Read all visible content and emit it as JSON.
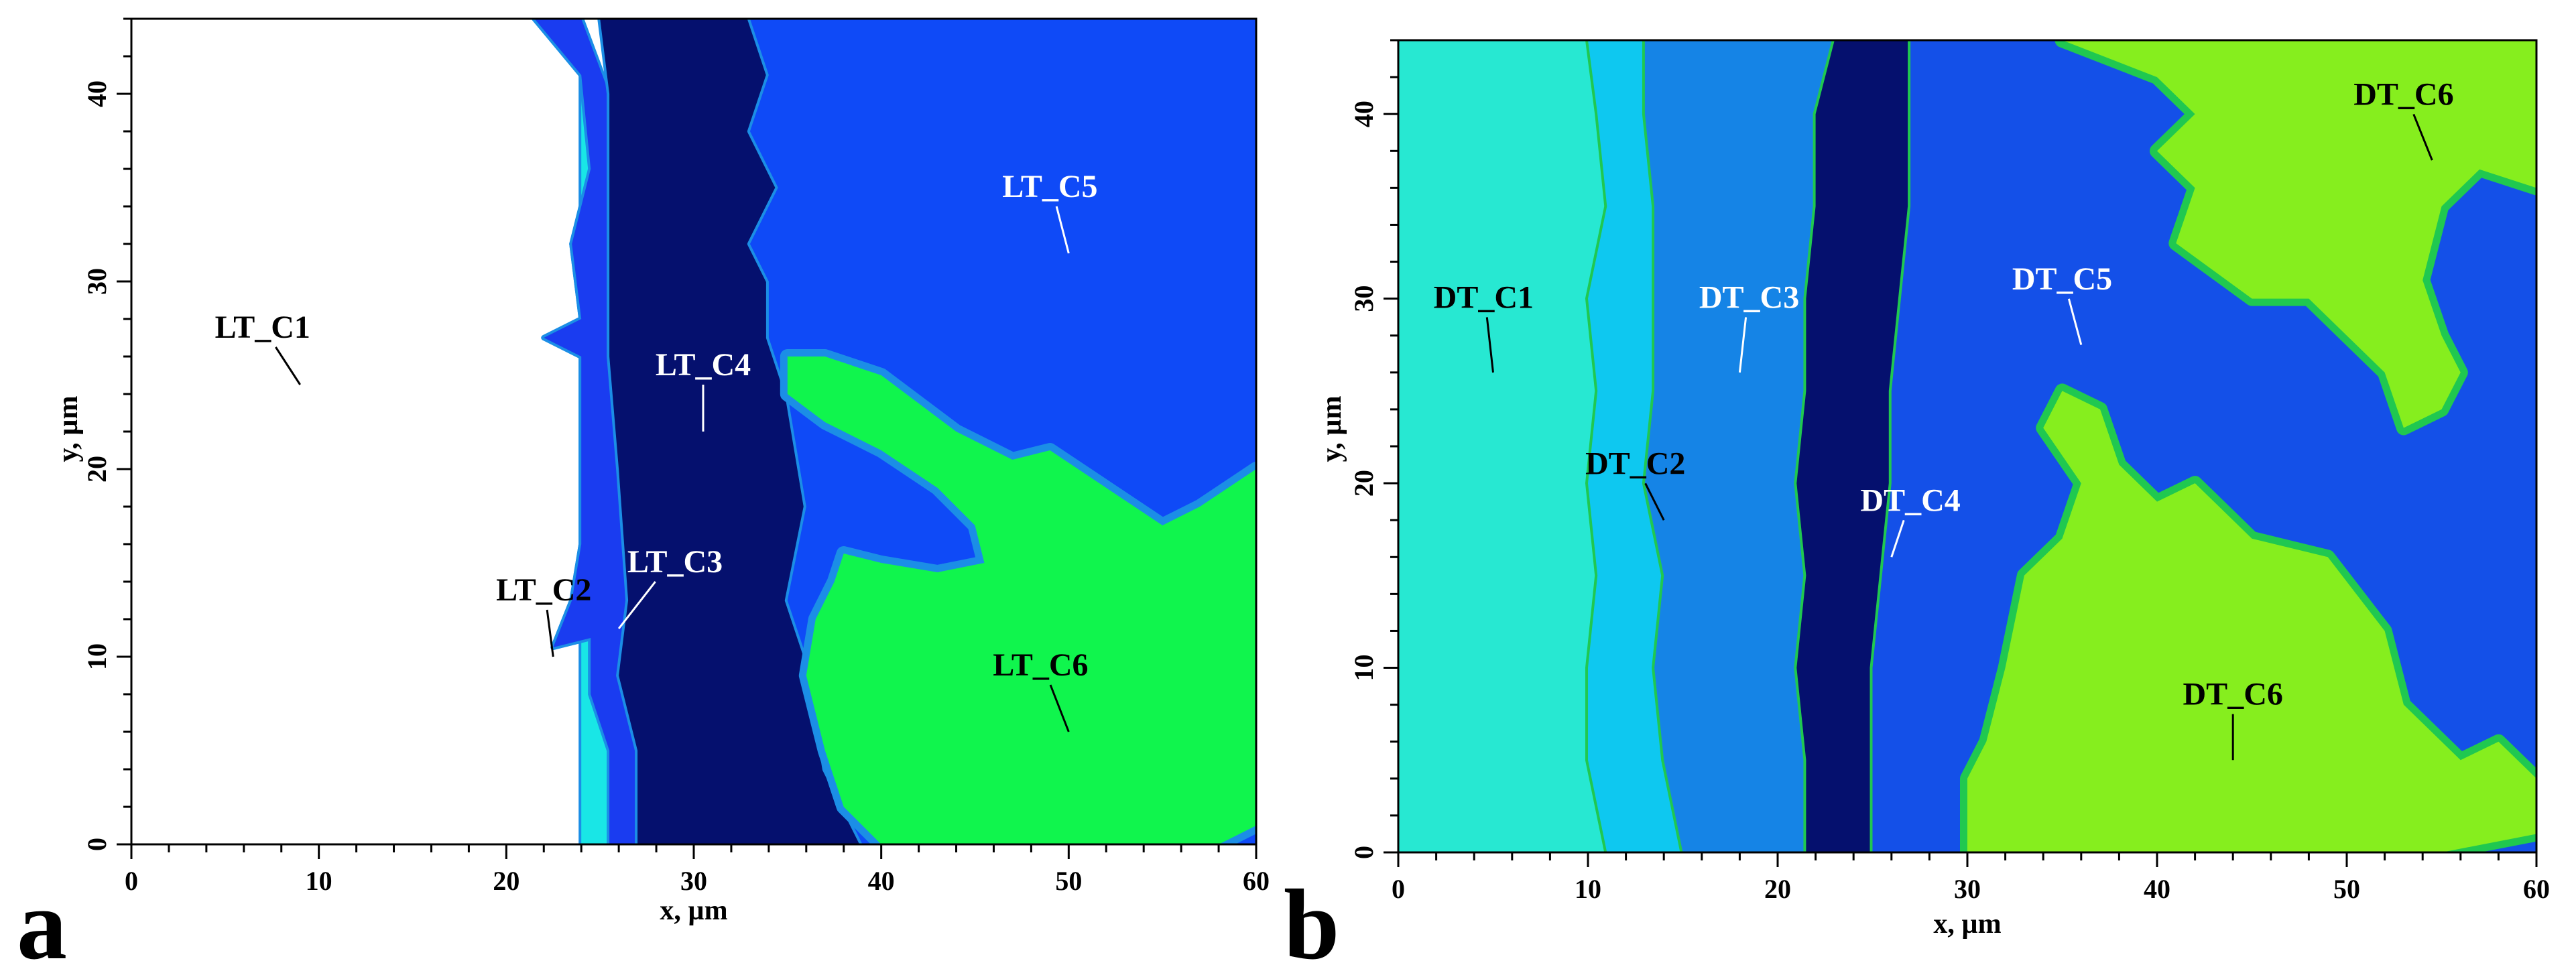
{
  "chart_data": [
    {
      "type": "heatmap",
      "panel_label": "a",
      "xlabel": "x, µm",
      "ylabel": "y, µm",
      "xlim": [
        0,
        60
      ],
      "ylim": [
        0,
        44
      ],
      "x_ticks": [
        "0",
        "10",
        "20",
        "30",
        "40",
        "50",
        "60"
      ],
      "y_ticks": [
        "0",
        "10",
        "20",
        "30",
        "40"
      ],
      "colors": {
        "C1": "#ffffff",
        "C2": "#19e6e6",
        "C3": "#1a3cf0",
        "C4": "#05106e",
        "C5": "#0f4af7",
        "C6": "#10f54d",
        "border": "#1b8ee6"
      },
      "regions": [
        {
          "label": "LT_C1",
          "x": 9,
          "y": 24.5,
          "label_x": 7,
          "label_y": 27,
          "label_color": "#000000",
          "polygon": [
            [
              0,
              0
            ],
            [
              24,
              0
            ],
            [
              24,
              44
            ],
            [
              0,
              44
            ]
          ]
        },
        {
          "label": "LT_C2",
          "x": 22.5,
          "y": 10,
          "label_x": 22,
          "label_y": 13,
          "label_color": "#000000",
          "polygon": [
            [
              24,
              0
            ],
            [
              25.5,
              0
            ],
            [
              25.5,
              5
            ],
            [
              24.5,
              8
            ],
            [
              24.5,
              11
            ],
            [
              22.5,
              10.5
            ],
            [
              23.5,
              13
            ],
            [
              24,
              16
            ],
            [
              24,
              26
            ],
            [
              22,
              27
            ],
            [
              24,
              28
            ],
            [
              23.5,
              32
            ],
            [
              24.5,
              36
            ],
            [
              24,
              41
            ],
            [
              21.5,
              44
            ],
            [
              24,
              44
            ],
            [
              24,
              0
            ]
          ]
        },
        {
          "label": "LT_C3",
          "x": 26,
          "y": 11.5,
          "label_x": 29,
          "label_y": 14.5,
          "label_color": "#ffffff",
          "polygon": [
            [
              25.5,
              0
            ],
            [
              27,
              0
            ],
            [
              27,
              5
            ],
            [
              26,
              9
            ],
            [
              26.5,
              13
            ],
            [
              26,
              20
            ],
            [
              25.5,
              26
            ],
            [
              25.5,
              36
            ],
            [
              25.5,
              40
            ],
            [
              24,
              44
            ],
            [
              21.5,
              44
            ],
            [
              24,
              41
            ],
            [
              24.5,
              36
            ],
            [
              23.5,
              32
            ],
            [
              24,
              28
            ],
            [
              22,
              27
            ],
            [
              24,
              26
            ],
            [
              24,
              16
            ],
            [
              23.5,
              13
            ],
            [
              22.5,
              10.5
            ],
            [
              24.5,
              11
            ],
            [
              24.5,
              8
            ],
            [
              25.5,
              5
            ]
          ]
        },
        {
          "label": "LT_C4",
          "x": 30.5,
          "y": 22,
          "label_x": 30.5,
          "label_y": 25,
          "label_color": "#ffffff",
          "polygon": [
            [
              27,
              0
            ],
            [
              39,
              0
            ],
            [
              37,
              4
            ],
            [
              36,
              10
            ],
            [
              35,
              13
            ],
            [
              36,
              18
            ],
            [
              35.5,
              21
            ],
            [
              35,
              24
            ],
            [
              34,
              27
            ],
            [
              34,
              30
            ],
            [
              33,
              32
            ],
            [
              34.5,
              35
            ],
            [
              33,
              38
            ],
            [
              34,
              41
            ],
            [
              33,
              44
            ],
            [
              25,
              44
            ],
            [
              25.5,
              40
            ],
            [
              25.5,
              36
            ],
            [
              25.5,
              26
            ],
            [
              26,
              20
            ],
            [
              26.5,
              13
            ],
            [
              26,
              9
            ],
            [
              27,
              5
            ]
          ]
        },
        {
          "label": "LT_C5",
          "x": 50,
          "y": 31.5,
          "label_x": 49,
          "label_y": 34.5,
          "label_color": "#ffffff",
          "polygon": [
            [
              33,
              44
            ],
            [
              60,
              44
            ],
            [
              60,
              0
            ],
            [
              39,
              0
            ],
            [
              37,
              4
            ],
            [
              36,
              10
            ],
            [
              35,
              13
            ],
            [
              36,
              18
            ],
            [
              35.5,
              21
            ],
            [
              35,
              24
            ],
            [
              34,
              27
            ],
            [
              34,
              30
            ],
            [
              33,
              32
            ],
            [
              34.5,
              35
            ],
            [
              33,
              38
            ],
            [
              34,
              41
            ]
          ]
        },
        {
          "label": "LT_C6",
          "x": 50,
          "y": 6,
          "label_x": 48.5,
          "label_y": 9,
          "label_color": "#000000",
          "polygon": [
            [
              40,
              0
            ],
            [
              58,
              0
            ],
            [
              60,
              1
            ],
            [
              60,
              20
            ],
            [
              57,
              18
            ],
            [
              55,
              17
            ],
            [
              52,
              19
            ],
            [
              49,
              21
            ],
            [
              47,
              20.5
            ],
            [
              44,
              22
            ],
            [
              42,
              23.5
            ],
            [
              40,
              25
            ],
            [
              37,
              26
            ],
            [
              35,
              26
            ],
            [
              35,
              24
            ],
            [
              37,
              22.5
            ],
            [
              40,
              21
            ],
            [
              43,
              19
            ],
            [
              45,
              17
            ],
            [
              45.5,
              15
            ],
            [
              43,
              14.5
            ],
            [
              40,
              15
            ],
            [
              38,
              15.5
            ],
            [
              37.5,
              14
            ],
            [
              36.5,
              12
            ],
            [
              36,
              9
            ],
            [
              37,
              5
            ],
            [
              38,
              2
            ]
          ]
        }
      ]
    },
    {
      "type": "heatmap",
      "panel_label": "b",
      "xlabel": "x, µm",
      "ylabel": "y, µm",
      "xlim": [
        0,
        60
      ],
      "ylim": [
        0,
        44
      ],
      "x_ticks": [
        "0",
        "10",
        "20",
        "30",
        "40",
        "50",
        "60"
      ],
      "y_ticks": [
        "0",
        "10",
        "20",
        "30",
        "40"
      ],
      "colors": {
        "C1": "#27e8d2",
        "C2": "#0ec8f0",
        "C3": "#1584e6",
        "C4": "#05106e",
        "C5": "#1450e8",
        "C6": "#86ee1e",
        "border": "#20c850"
      },
      "regions": [
        {
          "label": "DT_C1",
          "x": 5,
          "y": 26,
          "label_x": 4.5,
          "label_y": 29.5,
          "label_color": "#000000",
          "polygon": [
            [
              0,
              0
            ],
            [
              11,
              0
            ],
            [
              10,
              5
            ],
            [
              10,
              10
            ],
            [
              10.5,
              15
            ],
            [
              10,
              20
            ],
            [
              10.5,
              25
            ],
            [
              10,
              30
            ],
            [
              11,
              35
            ],
            [
              10.5,
              40
            ],
            [
              10,
              44
            ],
            [
              0,
              44
            ]
          ]
        },
        {
          "label": "DT_C2",
          "x": 14,
          "y": 18,
          "label_x": 12.5,
          "label_y": 20.5,
          "label_color": "#000000",
          "polygon": [
            [
              11,
              0
            ],
            [
              15,
              0
            ],
            [
              14,
              5
            ],
            [
              13.5,
              10
            ],
            [
              14,
              15
            ],
            [
              13,
              20
            ],
            [
              13.5,
              25
            ],
            [
              13.5,
              30
            ],
            [
              13.5,
              35
            ],
            [
              13,
              40
            ],
            [
              13,
              44
            ],
            [
              10,
              44
            ],
            [
              10.5,
              40
            ],
            [
              11,
              35
            ],
            [
              10,
              30
            ],
            [
              10.5,
              25
            ],
            [
              10,
              20
            ],
            [
              10.5,
              15
            ],
            [
              10,
              10
            ],
            [
              10,
              5
            ]
          ]
        },
        {
          "label": "DT_C3",
          "x": 18,
          "y": 26,
          "label_x": 18.5,
          "label_y": 29.5,
          "label_color": "#ffffff",
          "polygon": [
            [
              15,
              0
            ],
            [
              21.5,
              0
            ],
            [
              21.5,
              5
            ],
            [
              21,
              10
            ],
            [
              21.5,
              15
            ],
            [
              21,
              20
            ],
            [
              21.5,
              25
            ],
            [
              21.5,
              30
            ],
            [
              22,
              35
            ],
            [
              22,
              40
            ],
            [
              23,
              44
            ],
            [
              13,
              44
            ],
            [
              13,
              40
            ],
            [
              13.5,
              35
            ],
            [
              13.5,
              30
            ],
            [
              13.5,
              25
            ],
            [
              13,
              20
            ],
            [
              14,
              15
            ],
            [
              13.5,
              10
            ],
            [
              14,
              5
            ]
          ]
        },
        {
          "label": "DT_C4",
          "x": 26,
          "y": 16,
          "label_x": 27,
          "label_y": 18.5,
          "label_color": "#ffffff",
          "polygon": [
            [
              21.5,
              0
            ],
            [
              25,
              0
            ],
            [
              25,
              5
            ],
            [
              25,
              10
            ],
            [
              25.5,
              15
            ],
            [
              26,
              20
            ],
            [
              26,
              25
            ],
            [
              26.5,
              30
            ],
            [
              27,
              35
            ],
            [
              27,
              40
            ],
            [
              27,
              44
            ],
            [
              23,
              44
            ],
            [
              22,
              40
            ],
            [
              22,
              35
            ],
            [
              21.5,
              30
            ],
            [
              21.5,
              25
            ],
            [
              21,
              20
            ],
            [
              21.5,
              15
            ],
            [
              21,
              10
            ],
            [
              21.5,
              5
            ]
          ]
        },
        {
          "label": "DT_C5",
          "x": 36,
          "y": 27.5,
          "label_x": 35,
          "label_y": 30.5,
          "label_color": "#ffffff",
          "polygon": [
            [
              25,
              0
            ],
            [
              60,
              0
            ],
            [
              60,
              44
            ],
            [
              27,
              44
            ],
            [
              27,
              40
            ],
            [
              27,
              35
            ],
            [
              26.5,
              30
            ],
            [
              26,
              25
            ],
            [
              26,
              20
            ],
            [
              25.5,
              15
            ],
            [
              25,
              10
            ],
            [
              25,
              5
            ]
          ]
        },
        {
          "label": "DT_C6",
          "x": 44,
          "y": 5,
          "label_x": 44,
          "label_y": 8,
          "label_color": "#000000",
          "polygon": [
            [
              30,
              0
            ],
            [
              55,
              0
            ],
            [
              60,
              1
            ],
            [
              60,
              4
            ],
            [
              58,
              6
            ],
            [
              56,
              5
            ],
            [
              53,
              8
            ],
            [
              52,
              12
            ],
            [
              49,
              16
            ],
            [
              45,
              17
            ],
            [
              42,
              20
            ],
            [
              40,
              19
            ],
            [
              38,
              21
            ],
            [
              37,
              24
            ],
            [
              35,
              25
            ],
            [
              34,
              23
            ],
            [
              36,
              20
            ],
            [
              35,
              17
            ],
            [
              33,
              15
            ],
            [
              32,
              10
            ],
            [
              31,
              6
            ],
            [
              30,
              4
            ]
          ]
        },
        {
          "label": "DT_C6",
          "x": 54.5,
          "y": 37.5,
          "label_x": 53,
          "label_y": 40.5,
          "label_color": "#000000",
          "polygon": [
            [
              35,
              44
            ],
            [
              60,
              44
            ],
            [
              60,
              36
            ],
            [
              57,
              37
            ],
            [
              55,
              35
            ],
            [
              54,
              31
            ],
            [
              55,
              28
            ],
            [
              56,
              26
            ],
            [
              55,
              24
            ],
            [
              53,
              23
            ],
            [
              52,
              26
            ],
            [
              50,
              28
            ],
            [
              48,
              30
            ],
            [
              45,
              30
            ],
            [
              41,
              33
            ],
            [
              42,
              36
            ],
            [
              40,
              38
            ],
            [
              42,
              40
            ],
            [
              40,
              42
            ]
          ]
        }
      ]
    }
  ]
}
